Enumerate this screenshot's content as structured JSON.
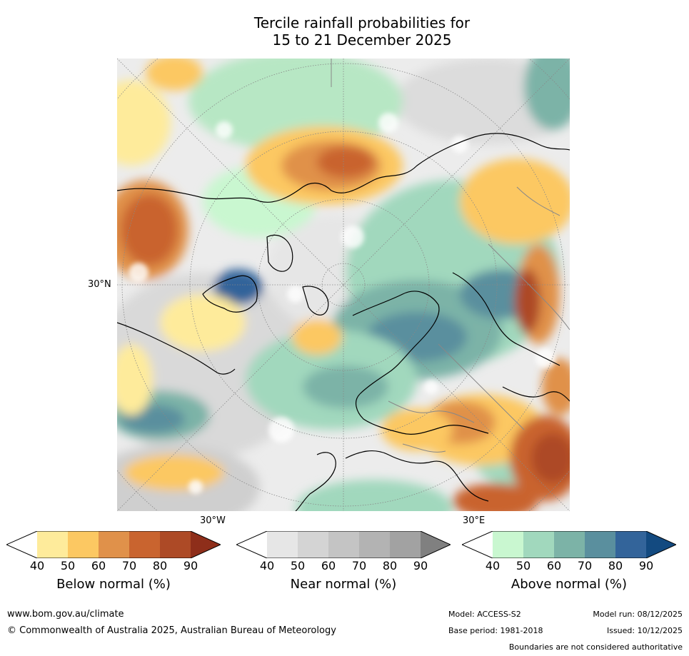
{
  "title": {
    "line1": "Tercile rainfall probabilities for",
    "line2": "15 to 21 December 2025"
  },
  "map": {
    "projection_labels": {
      "lat_30n": "30°N",
      "lon_30w": "30°W",
      "lon_30e": "30°E"
    },
    "region": "Northern Hemisphere polar view"
  },
  "colorbars": [
    {
      "label": "Below normal (%)",
      "ticks": [
        "40",
        "50",
        "60",
        "70",
        "80",
        "90"
      ],
      "colors": [
        "#ffffff",
        "#feeb9b",
        "#fcc862",
        "#e0914a",
        "#c9642f",
        "#ad4a26",
        "#8e2e1a"
      ]
    },
    {
      "label": "Near normal (%)",
      "ticks": [
        "40",
        "50",
        "60",
        "70",
        "80",
        "90"
      ],
      "colors": [
        "#ffffff",
        "#e6e6e6",
        "#d4d4d4",
        "#c4c4c4",
        "#b3b3b3",
        "#a2a2a2",
        "#808080"
      ]
    },
    {
      "label": "Above normal (%)",
      "ticks": [
        "40",
        "50",
        "60",
        "70",
        "80",
        "90"
      ],
      "colors": [
        "#ffffff",
        "#c9f7d0",
        "#a1d8bd",
        "#7cb3a7",
        "#5a8f9e",
        "#33649a",
        "#134a80"
      ]
    }
  ],
  "footer": {
    "url": "www.bom.gov.au/climate",
    "copyright": "© Commonwealth of Australia 2025, Australian Bureau of Meteorology",
    "model": "Model: ACCESS-S2",
    "model_run": "Model run: 08/12/2025",
    "base_period": "Base period: 1981-2018",
    "issued": "Issued: 10/12/2025",
    "disclaimer": "Boundaries are not considered authoritative"
  }
}
